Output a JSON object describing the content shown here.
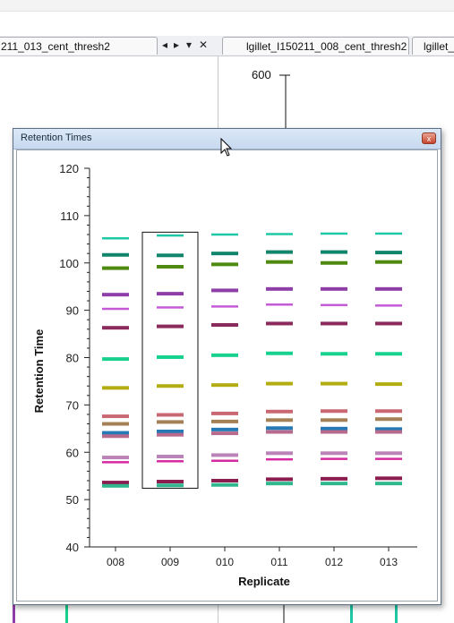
{
  "tabs": {
    "left_tab_label": "211_013_cent_thresh2",
    "center_tab_label": "lgillet_I150211_008_cent_thresh2",
    "right_tab_label": "lgillet_"
  },
  "tab_controls": {
    "prev_glyph": "◂",
    "next_glyph": "▸",
    "menu_glyph": "▾",
    "close_glyph": "✕"
  },
  "background_plot": {
    "top_tick_label": "600"
  },
  "dialog": {
    "title": "Retention Times",
    "close_glyph": "x"
  },
  "colors": {
    "dialog_border": "#5c6f85",
    "title_bar": "#c7d9ef",
    "close_button": "#c8442c"
  },
  "chart_data": {
    "type": "scatter",
    "xlabel": "Replicate",
    "ylabel": "Retention Time",
    "ylim": [
      40,
      120
    ],
    "yticks": [
      "40",
      "50",
      "60",
      "70",
      "80",
      "90",
      "100",
      "110",
      "120"
    ],
    "categories": [
      "008",
      "009",
      "010",
      "011",
      "012",
      "013"
    ],
    "selected_category": "009",
    "grid": false,
    "peaks": [
      {
        "color": "#1ec7a5",
        "values": [
          105.2,
          105.8,
          106.0,
          106.1,
          106.2,
          106.2
        ]
      },
      {
        "color": "#11856b",
        "values": [
          101.7,
          101.6,
          102.0,
          102.3,
          102.3,
          102.2
        ]
      },
      {
        "color": "#4e8a10",
        "values": [
          98.9,
          99.2,
          99.7,
          100.2,
          100.0,
          100.2
        ]
      },
      {
        "color": "#8e3ea6",
        "values": [
          93.3,
          93.5,
          94.2,
          94.5,
          94.5,
          94.5
        ]
      },
      {
        "color": "#c45ad6",
        "values": [
          90.3,
          90.6,
          90.8,
          91.2,
          91.1,
          91.0
        ]
      },
      {
        "color": "#8b2a5c",
        "values": [
          86.3,
          86.6,
          86.9,
          87.2,
          87.2,
          87.2
        ]
      },
      {
        "color": "#19d18f",
        "values": [
          79.7,
          80.1,
          80.5,
          80.9,
          80.8,
          80.8
        ]
      },
      {
        "color": "#b3ad12",
        "values": [
          73.6,
          74.0,
          74.2,
          74.5,
          74.5,
          74.4
        ]
      },
      {
        "color": "#c96872",
        "values": [
          67.6,
          67.9,
          68.2,
          68.6,
          68.7,
          68.7
        ]
      },
      {
        "color": "#a38055",
        "values": [
          66.0,
          66.4,
          66.5,
          66.8,
          66.8,
          67.0
        ]
      },
      {
        "color": "#2679b7",
        "values": [
          64.1,
          64.4,
          64.8,
          65.1,
          65.0,
          64.9
        ]
      },
      {
        "color": "#b86a8c",
        "values": [
          63.4,
          63.7,
          64.0,
          64.3,
          64.3,
          64.3
        ]
      },
      {
        "color": "#bb84b8",
        "values": [
          58.9,
          59.1,
          59.4,
          59.8,
          59.8,
          59.8
        ]
      },
      {
        "color": "#d62aa2",
        "values": [
          57.9,
          58.1,
          58.2,
          58.5,
          58.6,
          58.6
        ]
      },
      {
        "color": "#8a1c4f",
        "values": [
          53.6,
          53.8,
          54.0,
          54.3,
          54.4,
          54.5
        ]
      },
      {
        "color": "#31b78e",
        "values": [
          52.9,
          53.0,
          53.1,
          53.4,
          53.4,
          53.4
        ]
      }
    ]
  }
}
